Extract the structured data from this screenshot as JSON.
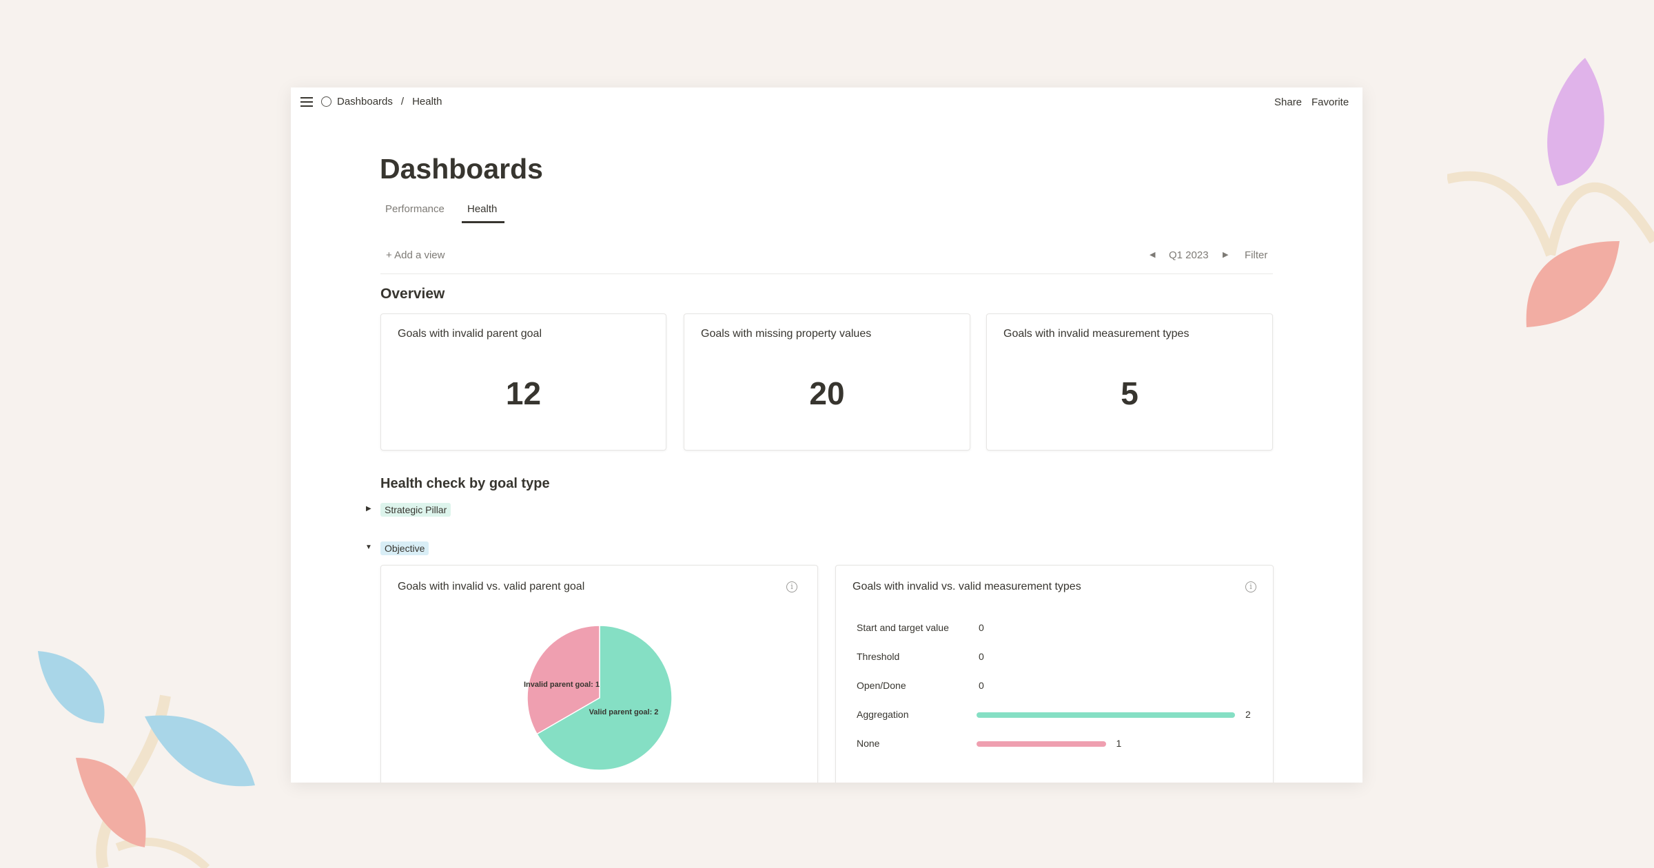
{
  "topbar": {
    "breadcrumb": [
      "Dashboards",
      "Health"
    ],
    "separator": "/",
    "share": "Share",
    "favorite": "Favorite"
  },
  "page": {
    "title": "Dashboards",
    "tabs": [
      {
        "label": "Performance",
        "active": false
      },
      {
        "label": "Health",
        "active": true
      }
    ],
    "add_view": "Add a view",
    "period": "Q1 2023",
    "filter": "Filter"
  },
  "overview": {
    "heading": "Overview",
    "cards": [
      {
        "title": "Goals with invalid parent goal",
        "value": "12"
      },
      {
        "title": "Goals with missing property values",
        "value": "20"
      },
      {
        "title": "Goals with invalid measurement types",
        "value": "5"
      }
    ]
  },
  "health": {
    "heading": "Health check by goal type",
    "groups": [
      {
        "label": "Strategic Pillar",
        "expanded": false,
        "color": "#ddf4ec"
      },
      {
        "label": "Objective",
        "expanded": true,
        "color": "#d9eef6"
      }
    ]
  },
  "chart_data": [
    {
      "type": "pie",
      "title": "Goals with invalid vs. valid parent goal",
      "slices": [
        {
          "label": "Invalid parent goal: 1",
          "name": "Invalid parent goal",
          "value": 1,
          "color": "#ef9fb0"
        },
        {
          "label": "Valid parent goal: 2",
          "name": "Valid parent goal",
          "value": 2,
          "color": "#85dfc4"
        }
      ]
    },
    {
      "type": "bar",
      "orientation": "horizontal",
      "title": "Goals with invalid vs. valid measurement types",
      "categories": [
        "Start and target value",
        "Threshold",
        "Open/Done",
        "Aggregation",
        "None"
      ],
      "values": [
        0,
        0,
        0,
        2,
        1
      ],
      "value_labels": [
        "0",
        "0",
        "0",
        "2",
        "1"
      ],
      "colors": [
        "#85dfc4",
        "#85dfc4",
        "#85dfc4",
        "#85dfc4",
        "#ef9fb0"
      ]
    }
  ]
}
